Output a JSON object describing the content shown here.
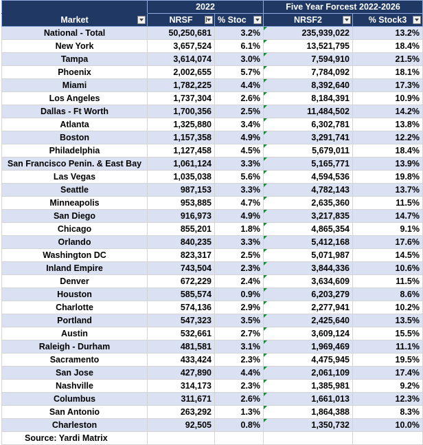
{
  "header": {
    "group_2022": "2022",
    "group_forecast": "Five Year Forcest 2022-2026",
    "col_market": "Market",
    "col_nrsf": "NRSF",
    "col_stock": "% Stoc",
    "col_nrsf2": "NRSF2",
    "col_stock3": "% Stock3"
  },
  "rows": [
    {
      "market": "National - Total",
      "nrsf": "50,250,681",
      "stock": "3.2%",
      "nrsf2": "235,939,022",
      "stock3": "13.2%"
    },
    {
      "market": "New York",
      "nrsf": "3,657,524",
      "stock": "6.1%",
      "nrsf2": "13,521,795",
      "stock3": "18.4%"
    },
    {
      "market": "Tampa",
      "nrsf": "3,614,074",
      "stock": "3.0%",
      "nrsf2": "7,594,910",
      "stock3": "21.5%"
    },
    {
      "market": "Phoenix",
      "nrsf": "2,002,655",
      "stock": "5.7%",
      "nrsf2": "7,784,092",
      "stock3": "18.1%"
    },
    {
      "market": "Miami",
      "nrsf": "1,782,225",
      "stock": "4.4%",
      "nrsf2": "8,392,640",
      "stock3": "17.3%"
    },
    {
      "market": "Los Angeles",
      "nrsf": "1,737,304",
      "stock": "2.6%",
      "nrsf2": "8,184,391",
      "stock3": "10.9%"
    },
    {
      "market": "Dallas - Ft Worth",
      "nrsf": "1,700,356",
      "stock": "2.5%",
      "nrsf2": "11,484,502",
      "stock3": "14.2%"
    },
    {
      "market": "Atlanta",
      "nrsf": "1,325,880",
      "stock": "3.4%",
      "nrsf2": "6,302,781",
      "stock3": "13.8%"
    },
    {
      "market": "Boston",
      "nrsf": "1,157,358",
      "stock": "4.9%",
      "nrsf2": "3,291,741",
      "stock3": "12.2%"
    },
    {
      "market": "Philadelphia",
      "nrsf": "1,127,458",
      "stock": "4.5%",
      "nrsf2": "5,679,011",
      "stock3": "18.4%"
    },
    {
      "market": "San Francisco Penin. & East Bay",
      "nrsf": "1,061,124",
      "stock": "3.3%",
      "nrsf2": "5,165,771",
      "stock3": "13.9%"
    },
    {
      "market": "Las Vegas",
      "nrsf": "1,035,038",
      "stock": "5.6%",
      "nrsf2": "4,594,536",
      "stock3": "19.8%"
    },
    {
      "market": "Seattle",
      "nrsf": "987,153",
      "stock": "3.3%",
      "nrsf2": "4,782,143",
      "stock3": "13.7%"
    },
    {
      "market": "Minneapolis",
      "nrsf": "953,885",
      "stock": "4.7%",
      "nrsf2": "2,635,360",
      "stock3": "11.5%"
    },
    {
      "market": "San Diego",
      "nrsf": "916,973",
      "stock": "4.9%",
      "nrsf2": "3,217,835",
      "stock3": "14.7%"
    },
    {
      "market": "Chicago",
      "nrsf": "855,201",
      "stock": "1.8%",
      "nrsf2": "4,865,354",
      "stock3": "9.1%"
    },
    {
      "market": "Orlando",
      "nrsf": "840,235",
      "stock": "3.3%",
      "nrsf2": "5,412,168",
      "stock3": "17.6%"
    },
    {
      "market": "Washington DC",
      "nrsf": "823,317",
      "stock": "2.5%",
      "nrsf2": "5,071,987",
      "stock3": "14.5%"
    },
    {
      "market": "Inland Empire",
      "nrsf": "743,504",
      "stock": "2.3%",
      "nrsf2": "3,844,336",
      "stock3": "10.6%"
    },
    {
      "market": "Denver",
      "nrsf": "672,229",
      "stock": "2.4%",
      "nrsf2": "3,634,609",
      "stock3": "11.5%"
    },
    {
      "market": "Houston",
      "nrsf": "585,574",
      "stock": "0.9%",
      "nrsf2": "6,203,279",
      "stock3": "8.6%"
    },
    {
      "market": "Charlotte",
      "nrsf": "574,136",
      "stock": "2.9%",
      "nrsf2": "2,277,941",
      "stock3": "10.2%"
    },
    {
      "market": "Portland",
      "nrsf": "547,323",
      "stock": "3.5%",
      "nrsf2": "2,425,640",
      "stock3": "13.5%"
    },
    {
      "market": "Austin",
      "nrsf": "532,661",
      "stock": "2.7%",
      "nrsf2": "3,609,124",
      "stock3": "15.5%"
    },
    {
      "market": "Raleigh - Durham",
      "nrsf": "481,581",
      "stock": "3.1%",
      "nrsf2": "1,969,469",
      "stock3": "11.1%"
    },
    {
      "market": "Sacramento",
      "nrsf": "433,424",
      "stock": "2.3%",
      "nrsf2": "4,475,945",
      "stock3": "19.5%"
    },
    {
      "market": "San Jose",
      "nrsf": "427,890",
      "stock": "4.4%",
      "nrsf2": "2,061,109",
      "stock3": "17.4%"
    },
    {
      "market": "Nashville",
      "nrsf": "314,173",
      "stock": "2.3%",
      "nrsf2": "1,385,981",
      "stock3": "9.2%"
    },
    {
      "market": "Columbus",
      "nrsf": "311,671",
      "stock": "2.6%",
      "nrsf2": "1,661,013",
      "stock3": "12.3%"
    },
    {
      "market": "San Antonio",
      "nrsf": "263,292",
      "stock": "1.3%",
      "nrsf2": "1,864,388",
      "stock3": "8.3%"
    },
    {
      "market": "Charleston",
      "nrsf": "92,505",
      "stock": "0.8%",
      "nrsf2": "1,350,732",
      "stock3": "10.0%"
    }
  ],
  "footer": {
    "source": "Source: Yardi Matrix"
  }
}
